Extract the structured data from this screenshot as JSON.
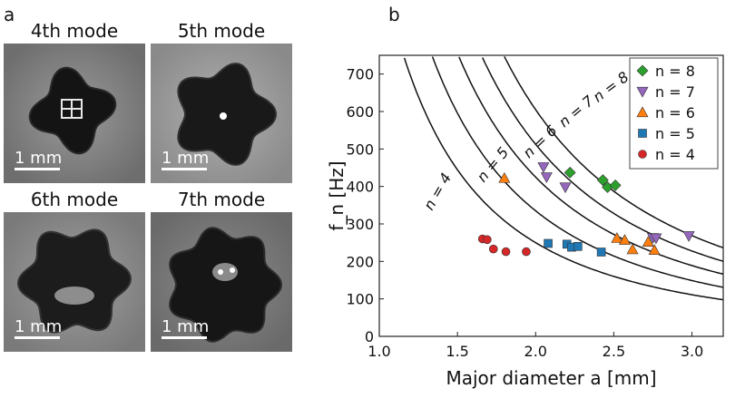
{
  "panel_a": {
    "label": "a",
    "modes": [
      {
        "title": "4th mode",
        "scale": "1 mm",
        "n": 4
      },
      {
        "title": "5th mode",
        "scale": "1 mm",
        "n": 5
      },
      {
        "title": "6th mode",
        "scale": "1 mm",
        "n": 6
      },
      {
        "title": "7th mode",
        "scale": "1 mm",
        "n": 7
      }
    ]
  },
  "panel_b": {
    "label": "b"
  },
  "chart_data": {
    "type": "scatter",
    "xlabel": "Major diameter a [mm]",
    "ylabel": "f_n [Hz]",
    "xlim": [
      1.0,
      3.2
    ],
    "ylim": [
      0,
      750
    ],
    "xticks": [
      "1.0",
      "1.5",
      "2.0",
      "2.5",
      "3.0"
    ],
    "xtick_values": [
      1.0,
      1.5,
      2.0,
      2.5,
      3.0
    ],
    "yticks": [
      "0",
      "100",
      "200",
      "300",
      "400",
      "500",
      "600",
      "700"
    ],
    "ytick_values": [
      0,
      100,
      200,
      300,
      400,
      500,
      600,
      700
    ],
    "curves": [
      {
        "n": 4,
        "label": "n = 4",
        "k": 1000,
        "label_at": [
          1.4,
          380
        ]
      },
      {
        "n": 5,
        "label": "n = 5",
        "k": 1340,
        "label_at": [
          1.75,
          450
        ]
      },
      {
        "n": 6,
        "label": "n = 6",
        "k": 1700,
        "label_at": [
          2.05,
          510
        ]
      },
      {
        "n": 7,
        "label": "n = 7",
        "k": 2050,
        "label_at": [
          2.28,
          590
        ]
      },
      {
        "n": 8,
        "label": "n = 8",
        "k": 2420,
        "label_at": [
          2.5,
          655
        ]
      }
    ],
    "series": [
      {
        "name": "n = 8",
        "n": "8",
        "marker": "diamond",
        "color": "#2ca02c",
        "x": [
          2.22,
          2.43,
          2.46,
          2.51
        ],
        "y": [
          437,
          417,
          398,
          403
        ]
      },
      {
        "name": "n = 7",
        "n": "7",
        "marker": "triangle-down",
        "color": "#9467bd",
        "x": [
          2.05,
          2.07,
          2.19,
          2.75,
          2.77,
          2.98
        ],
        "y": [
          452,
          425,
          398,
          263,
          262,
          268
        ]
      },
      {
        "name": "n = 6",
        "n": "6",
        "marker": "triangle-up",
        "color": "#ff7f0e",
        "x": [
          1.8,
          2.52,
          2.57,
          2.62,
          2.72,
          2.76
        ],
        "y": [
          422,
          262,
          257,
          232,
          252,
          230
        ]
      },
      {
        "name": "n = 5",
        "n": "5",
        "marker": "square",
        "color": "#1f77b4",
        "x": [
          2.08,
          2.2,
          2.23,
          2.27,
          2.42
        ],
        "y": [
          248,
          246,
          238,
          240,
          225
        ]
      },
      {
        "name": "n = 4",
        "n": "4",
        "marker": "circle",
        "color": "#d62728",
        "x": [
          1.66,
          1.69,
          1.73,
          1.81,
          1.94
        ],
        "y": [
          260,
          258,
          233,
          226,
          226
        ]
      }
    ],
    "legend": {
      "position": "top-right",
      "entries": [
        {
          "marker": "diamond",
          "color": "#2ca02c",
          "text": "n = 8"
        },
        {
          "marker": "triangle-down",
          "color": "#9467bd",
          "text": "n = 7"
        },
        {
          "marker": "triangle-up",
          "color": "#ff7f0e",
          "text": "n = 6"
        },
        {
          "marker": "square",
          "color": "#1f77b4",
          "text": "n = 5"
        },
        {
          "marker": "circle",
          "color": "#d62728",
          "text": "n = 4"
        }
      ]
    }
  }
}
